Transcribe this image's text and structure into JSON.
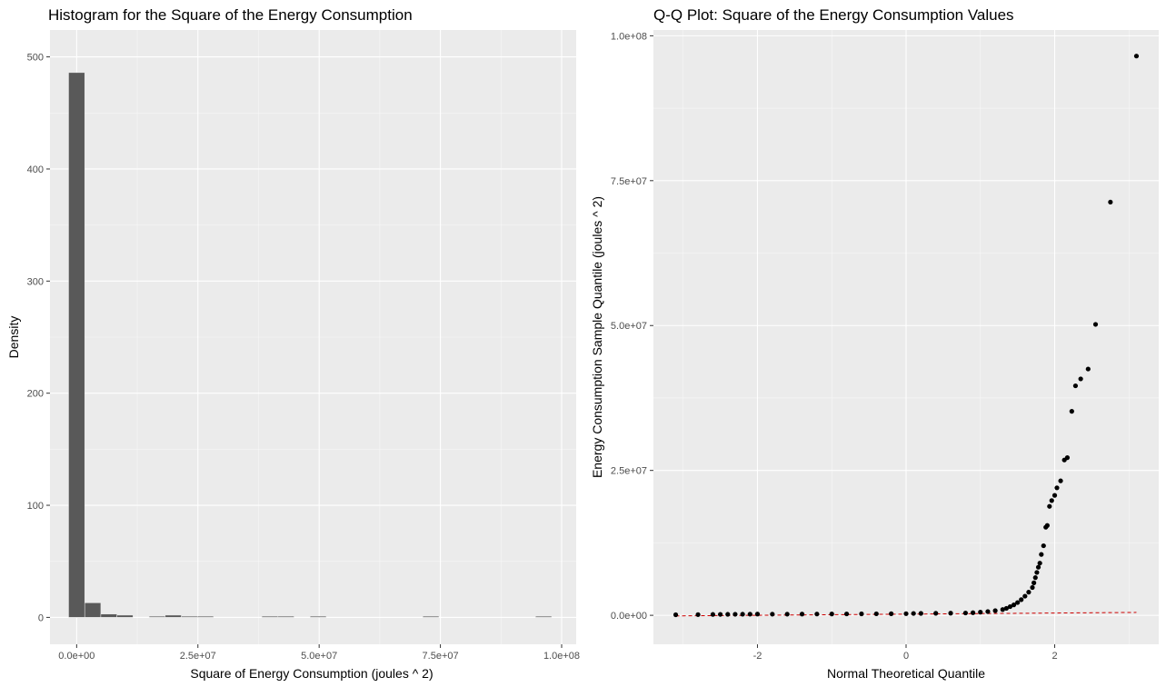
{
  "chart_data": [
    {
      "type": "bar",
      "title": "Histogram for the Square of the Energy Consumption",
      "xlabel": "Square of Energy Consumption (joules ^ 2)",
      "ylabel": "Density",
      "xlim": [
        -5500000,
        103000000
      ],
      "ylim": [
        -24,
        524
      ],
      "x_ticks": [
        0,
        25000000,
        50000000,
        75000000,
        100000000
      ],
      "x_tick_labels": [
        "0.0e+00",
        "2.5e+07",
        "5.0e+07",
        "7.5e+07",
        "1.0e+08"
      ],
      "y_ticks": [
        0,
        100,
        200,
        300,
        400,
        500
      ],
      "y_tick_labels": [
        "0",
        "100",
        "200",
        "300",
        "400",
        "500"
      ],
      "bin_width": 3320000,
      "bin_centers": [
        0,
        3320000,
        6640000,
        9960000,
        13280000,
        16600000,
        19920000,
        23240000,
        26560000,
        29880000,
        33200000,
        36520000,
        39840000,
        43160000,
        46480000,
        49800000,
        53120000,
        56440000,
        59760000,
        63080000,
        66400000,
        69720000,
        73040000,
        76360000,
        79680000,
        83000000,
        86320000,
        89640000,
        92960000,
        96280000
      ],
      "values": [
        486,
        13,
        3,
        2,
        0,
        1,
        2,
        1,
        1,
        0,
        0,
        0,
        1,
        1,
        0,
        1,
        0,
        0,
        0,
        0,
        0,
        0,
        1,
        0,
        0,
        0,
        0,
        0,
        0,
        1
      ],
      "bar_color": "#595959",
      "panel_color": "#ebebeb",
      "grid": true
    },
    {
      "type": "scatter",
      "title": "Q-Q Plot: Square of the Energy Consumption Values",
      "xlabel": "Normal Theoretical Quantile",
      "ylabel": "Energy Consumption Sample Quantile (joules ^ 2)",
      "xlim": [
        -3.4,
        3.4
      ],
      "ylim": [
        -5000000,
        101000000
      ],
      "x_ticks": [
        -2,
        0,
        2
      ],
      "x_tick_labels": [
        "-2",
        "0",
        "2"
      ],
      "y_ticks": [
        0,
        25000000,
        50000000,
        75000000,
        100000000
      ],
      "y_tick_labels": [
        "0.0e+00",
        "2.5e+07",
        "5.0e+07",
        "7.5e+07",
        "1.0e+08"
      ],
      "points": [
        [
          -3.1,
          100000
        ],
        [
          -2.8,
          120000
        ],
        [
          -2.6,
          150000
        ],
        [
          -2.5,
          160000
        ],
        [
          -2.4,
          170000
        ],
        [
          -2.3,
          180000
        ],
        [
          -2.2,
          190000
        ],
        [
          -2.1,
          200000
        ],
        [
          -2.0,
          210000
        ],
        [
          -1.8,
          200000
        ],
        [
          -1.6,
          200000
        ],
        [
          -1.4,
          210000
        ],
        [
          -1.2,
          220000
        ],
        [
          -1.0,
          230000
        ],
        [
          -0.8,
          240000
        ],
        [
          -0.6,
          250000
        ],
        [
          -0.4,
          260000
        ],
        [
          -0.2,
          270000
        ],
        [
          0.0,
          280000
        ],
        [
          0.1,
          320000
        ],
        [
          0.2,
          330000
        ],
        [
          0.4,
          350000
        ],
        [
          0.6,
          370000
        ],
        [
          0.8,
          400000
        ],
        [
          0.9,
          450000
        ],
        [
          1.0,
          550000
        ],
        [
          1.1,
          650000
        ],
        [
          1.2,
          800000
        ],
        [
          1.3,
          1000000
        ],
        [
          1.35,
          1200000
        ],
        [
          1.4,
          1500000
        ],
        [
          1.45,
          1800000
        ],
        [
          1.5,
          2200000
        ],
        [
          1.55,
          2700000
        ],
        [
          1.6,
          3300000
        ],
        [
          1.65,
          4000000
        ],
        [
          1.7,
          4800000
        ],
        [
          1.72,
          5600000
        ],
        [
          1.74,
          6500000
        ],
        [
          1.76,
          7400000
        ],
        [
          1.78,
          8300000
        ],
        [
          1.8,
          9000000
        ],
        [
          1.82,
          10500000
        ],
        [
          1.85,
          12000000
        ],
        [
          1.88,
          15200000
        ],
        [
          1.9,
          15500000
        ],
        [
          1.93,
          18800000
        ],
        [
          1.96,
          19800000
        ],
        [
          2.0,
          20700000
        ],
        [
          2.03,
          22000000
        ],
        [
          2.08,
          23200000
        ],
        [
          2.13,
          26800000
        ],
        [
          2.17,
          27200000
        ],
        [
          2.23,
          35200000
        ],
        [
          2.28,
          39600000
        ],
        [
          2.35,
          40800000
        ],
        [
          2.45,
          42500000
        ],
        [
          2.55,
          50200000
        ],
        [
          2.75,
          71300000
        ],
        [
          3.1,
          96500000
        ]
      ],
      "reference_line": [
        [
          -3.1,
          -100000
        ],
        [
          3.1,
          500000
        ]
      ],
      "point_color": "#000000",
      "line_color": "#cc0000",
      "panel_color": "#ebebeb",
      "grid": true
    }
  ]
}
